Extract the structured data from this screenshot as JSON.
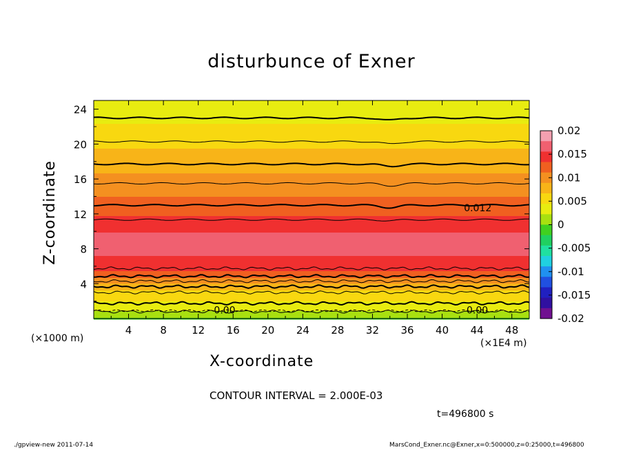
{
  "chart_data": {
    "type": "heatmap",
    "title": "disturbunce of Exner",
    "xlabel": "X-coordinate",
    "ylabel": "Z-coordinate",
    "x_unit_label": "(×1000 m)",
    "x_secondary_unit_label": "(×1E4 m)",
    "xlim": [
      0,
      50
    ],
    "ylim": [
      0,
      25
    ],
    "x_ticks": [
      4,
      8,
      12,
      16,
      20,
      24,
      28,
      32,
      36,
      40,
      44,
      48
    ],
    "y_ticks": [
      4,
      8,
      12,
      16,
      20,
      24
    ],
    "colorbar": {
      "ticks": [
        "0.02",
        "0.015",
        "0.01",
        "0.005",
        "0",
        "-0.005",
        "-0.01",
        "-0.015",
        "-0.02"
      ],
      "range": [
        -0.02,
        0.02
      ],
      "colors": [
        "#f4a0b0",
        "#f06070",
        "#f03030",
        "#f06020",
        "#f49020",
        "#f8b418",
        "#f8d810",
        "#e8ec10",
        "#a8e010",
        "#40d020",
        "#20d060",
        "#20e0a0",
        "#20d0e0",
        "#2090f0",
        "#2050e0",
        "#2020c0",
        "#3010a0",
        "#701090"
      ]
    },
    "profile_z": [
      0,
      1,
      2,
      3,
      4,
      5,
      6,
      7,
      8,
      9,
      10,
      11,
      12,
      13,
      14,
      15,
      16,
      17,
      18,
      19,
      20,
      21,
      22,
      23,
      24,
      25
    ],
    "profile_value": [
      0.0,
      0.0025,
      0.0045,
      0.006,
      0.009,
      0.0125,
      0.0145,
      0.0155,
      0.016,
      0.016,
      0.0155,
      0.0145,
      0.013,
      0.012,
      0.011,
      0.0105,
      0.0095,
      0.0085,
      0.0078,
      0.007,
      0.0062,
      0.0055,
      0.0047,
      0.004,
      0.0033,
      0.0027
    ],
    "contour_labels": [
      {
        "text": "0.00",
        "x": 13.8,
        "z": 1.0
      },
      {
        "text": "0.00",
        "x": 42.8,
        "z": 1.0
      },
      {
        "text": "0.012",
        "x": 42.5,
        "z": 12.7
      }
    ],
    "contour_interval_text": "CONTOUR INTERVAL = 2.000E-03",
    "time_text": "t=496800 s"
  },
  "footer": {
    "left": "./gpview-new  2011-07-14",
    "right": "MarsCond_Exner.nc@Exner,x=0:500000,z=0:25000,t=496800"
  }
}
